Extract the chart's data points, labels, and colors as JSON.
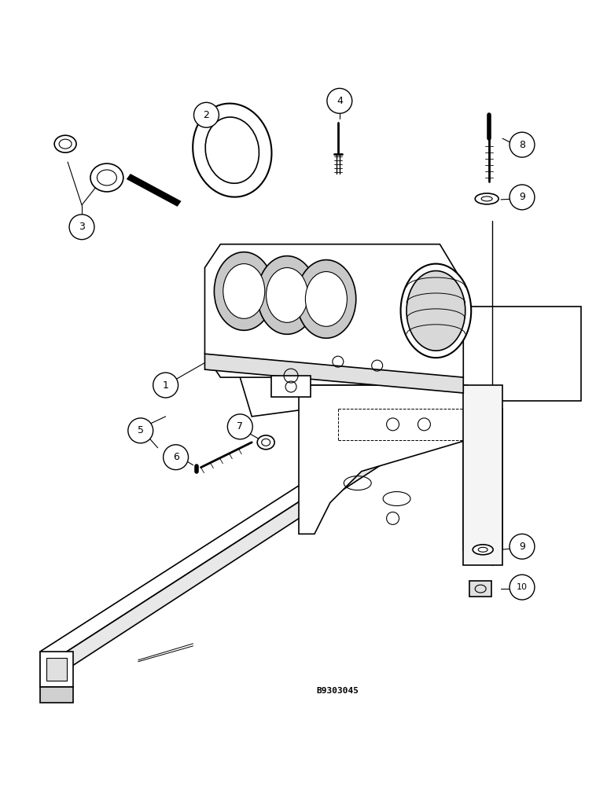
{
  "bg_color": "#ffffff",
  "line_color": "#000000",
  "fig_width": 7.72,
  "fig_height": 10.0,
  "watermark": "B9303045",
  "dpi": 100
}
